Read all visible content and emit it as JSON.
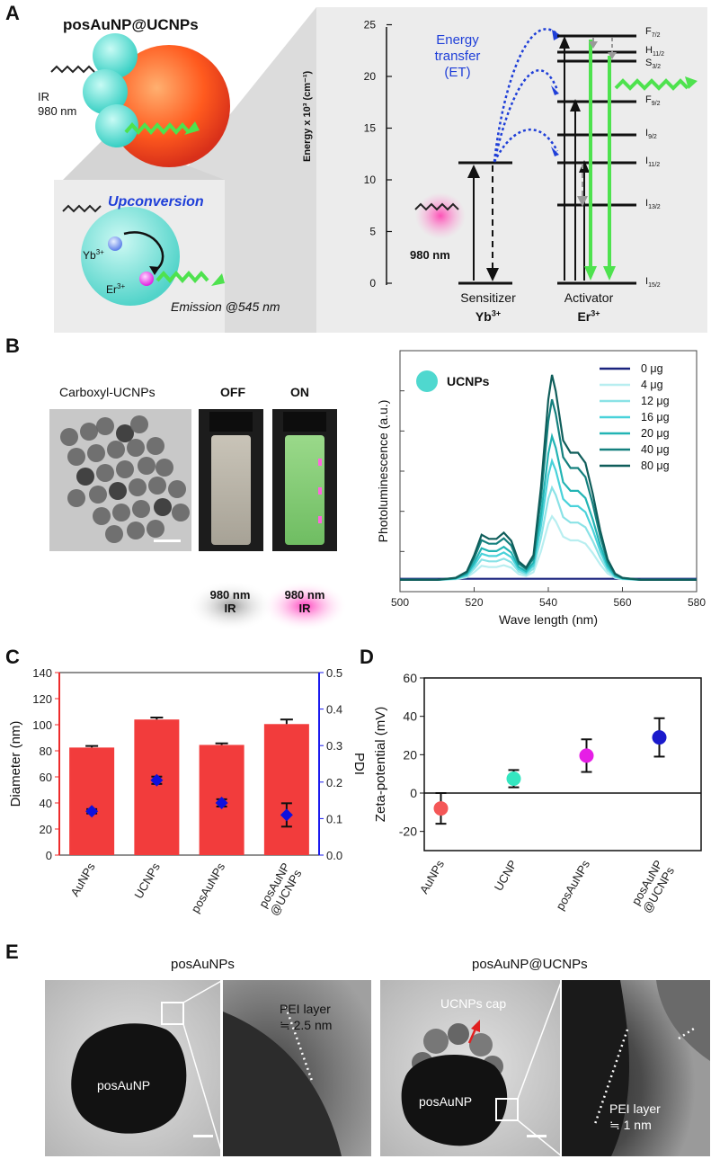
{
  "panels": {
    "A": "A",
    "B": "B",
    "C": "C",
    "D": "D",
    "E": "E"
  },
  "panelA": {
    "particle_title": "posAuNP@UCNPs",
    "ir_label": "IR",
    "ir_wavelength": "980 nm",
    "inset_title": "Upconversion",
    "ion_yb": "Yb",
    "ion_er": "Er",
    "ion_charge": "3+",
    "emission": "Emission @545 nm",
    "energy_axis_label": "Energy x 10³ (cm⁻¹)",
    "y_ticks": [
      "0",
      "5",
      "10",
      "15",
      "20",
      "25"
    ],
    "energy_transfer": "Energy",
    "energy_transfer_2": "transfer",
    "energy_transfer_3": "(ET)",
    "excitation": "980 nm",
    "sensitizer": "Sensitizer",
    "sensitizer_ion": "Yb",
    "activator": "Activator",
    "activator_ion": "Er",
    "levels": [
      {
        "main": "F",
        "sub": "7/2"
      },
      {
        "main": "H",
        "sub": "11/2"
      },
      {
        "main": "S",
        "sub": "3/2"
      },
      {
        "main": "F",
        "sub": "9/2"
      },
      {
        "main": "I",
        "sub": "9/2"
      },
      {
        "main": "I",
        "sub": "11/2"
      },
      {
        "main": "I",
        "sub": "13/2"
      },
      {
        "main": "I",
        "sub": "15/2"
      }
    ],
    "colors": {
      "panel_bg": "#ececec",
      "energy_blue": "#1f3fd8",
      "green": "#4ee24e",
      "cyan": "#4fd8cf",
      "gold": "#ff6a1f"
    }
  },
  "panelB": {
    "tem_label": "Carboxyl-UCNPs",
    "off_label": "OFF",
    "on_label": "ON",
    "ir_off": "980 nm",
    "ir_off_2": "IR",
    "ir_on": "980 nm",
    "ir_on_2": "IR",
    "legend_title": "UCNPs",
    "colors": {
      "off_glow": "#b8b8b8",
      "on_glow": "#ff59c8",
      "vial_on": "#7fc86e"
    }
  },
  "chart_data": [
    {
      "type": "line",
      "panel": "B",
      "xlabel": "Wave length (nm)",
      "ylabel": "Photoluminescence (a.u.)",
      "xlim": [
        500,
        580
      ],
      "xticks": [
        "500",
        "520",
        "540",
        "560",
        "580"
      ],
      "ylim": [
        0,
        1
      ],
      "legend_position": "top-right",
      "series": [
        {
          "name": "0 μg",
          "color": "#1a237e",
          "peak_scale": 0.0
        },
        {
          "name": "4 μg",
          "color": "#b8eef0",
          "peak_scale": 0.31
        },
        {
          "name": "12 μg",
          "color": "#8ae2e6",
          "peak_scale": 0.45
        },
        {
          "name": "16 μg",
          "color": "#49d2da",
          "peak_scale": 0.58
        },
        {
          "name": "20 μg",
          "color": "#22b4b4",
          "peak_scale": 0.7
        },
        {
          "name": "40 μg",
          "color": "#14807e",
          "peak_scale": 0.88
        },
        {
          "name": "80 μg",
          "color": "#0f5d5a",
          "peak_scale": 1.0
        }
      ],
      "spectrum_shape": {
        "x": [
          500,
          510,
          515,
          518,
          520,
          522,
          524,
          526,
          528,
          530,
          532,
          534,
          536,
          538,
          540,
          541,
          542,
          544,
          546,
          548,
          550,
          552,
          554,
          556,
          558,
          560,
          565,
          570,
          580
        ],
        "y": [
          0.0,
          0.0,
          0.01,
          0.04,
          0.12,
          0.22,
          0.2,
          0.2,
          0.23,
          0.19,
          0.09,
          0.06,
          0.12,
          0.45,
          0.88,
          1.0,
          0.92,
          0.68,
          0.62,
          0.62,
          0.57,
          0.42,
          0.24,
          0.1,
          0.03,
          0.01,
          0.0,
          0.0,
          0.0
        ]
      }
    },
    {
      "type": "bar",
      "panel": "C",
      "categories": [
        "AuNPs",
        "UCNPs",
        "posAuNPs",
        "posAuNP\n@UCNPs"
      ],
      "ylabel": "Diameter (nm)",
      "ylim": [
        0,
        140
      ],
      "yticks": [
        0,
        20,
        40,
        60,
        80,
        100,
        120,
        140
      ],
      "y2label": "PDI",
      "y2lim": [
        0,
        0.5
      ],
      "y2ticks": [
        "0.0",
        "0.1",
        "0.2",
        "0.3",
        "0.4",
        "0.5"
      ],
      "series": [
        {
          "name": "Diameter",
          "axis": "left",
          "color": "#f23c3c",
          "values": [
            82.5,
            104,
            84.5,
            100.5
          ],
          "errors": [
            1.2,
            1.5,
            1.2,
            3.5
          ]
        },
        {
          "name": "PDI",
          "axis": "right",
          "color": "#1010dd",
          "values": [
            0.12,
            0.205,
            0.143,
            0.11
          ],
          "errors": [
            0.006,
            0.01,
            0.01,
            0.032
          ]
        }
      ],
      "axis_colors": {
        "left": "#ee2b2b",
        "right": "#1a1aee"
      }
    },
    {
      "type": "scatter",
      "panel": "D",
      "categories": [
        "AuNPs",
        "UCNP",
        "posAuNPs",
        "posAuNP\n@UCNPs"
      ],
      "ylabel": "Zeta-potential (mV)",
      "ylim": [
        -30,
        60
      ],
      "yticks": [
        -20,
        0,
        20,
        40,
        60
      ],
      "values": [
        -8,
        7.5,
        19.5,
        29
      ],
      "errors": [
        8,
        4.5,
        8.5,
        10
      ],
      "colors": [
        "#f45757",
        "#34e6c0",
        "#e61ee6",
        "#1a1acc"
      ]
    }
  ],
  "panelE": {
    "left_title": "posAuNPs",
    "right_title": "posAuNP@UCNPs",
    "core_label": "posAuNP",
    "core_label_2": "posAuNP",
    "pei_left": "PEI layer",
    "pei_left_2": "≒ 2.5 nm",
    "pei_right": "PEI layer",
    "pei_right_2": "≒ 1 nm",
    "cap_label": "UCNPs cap"
  }
}
